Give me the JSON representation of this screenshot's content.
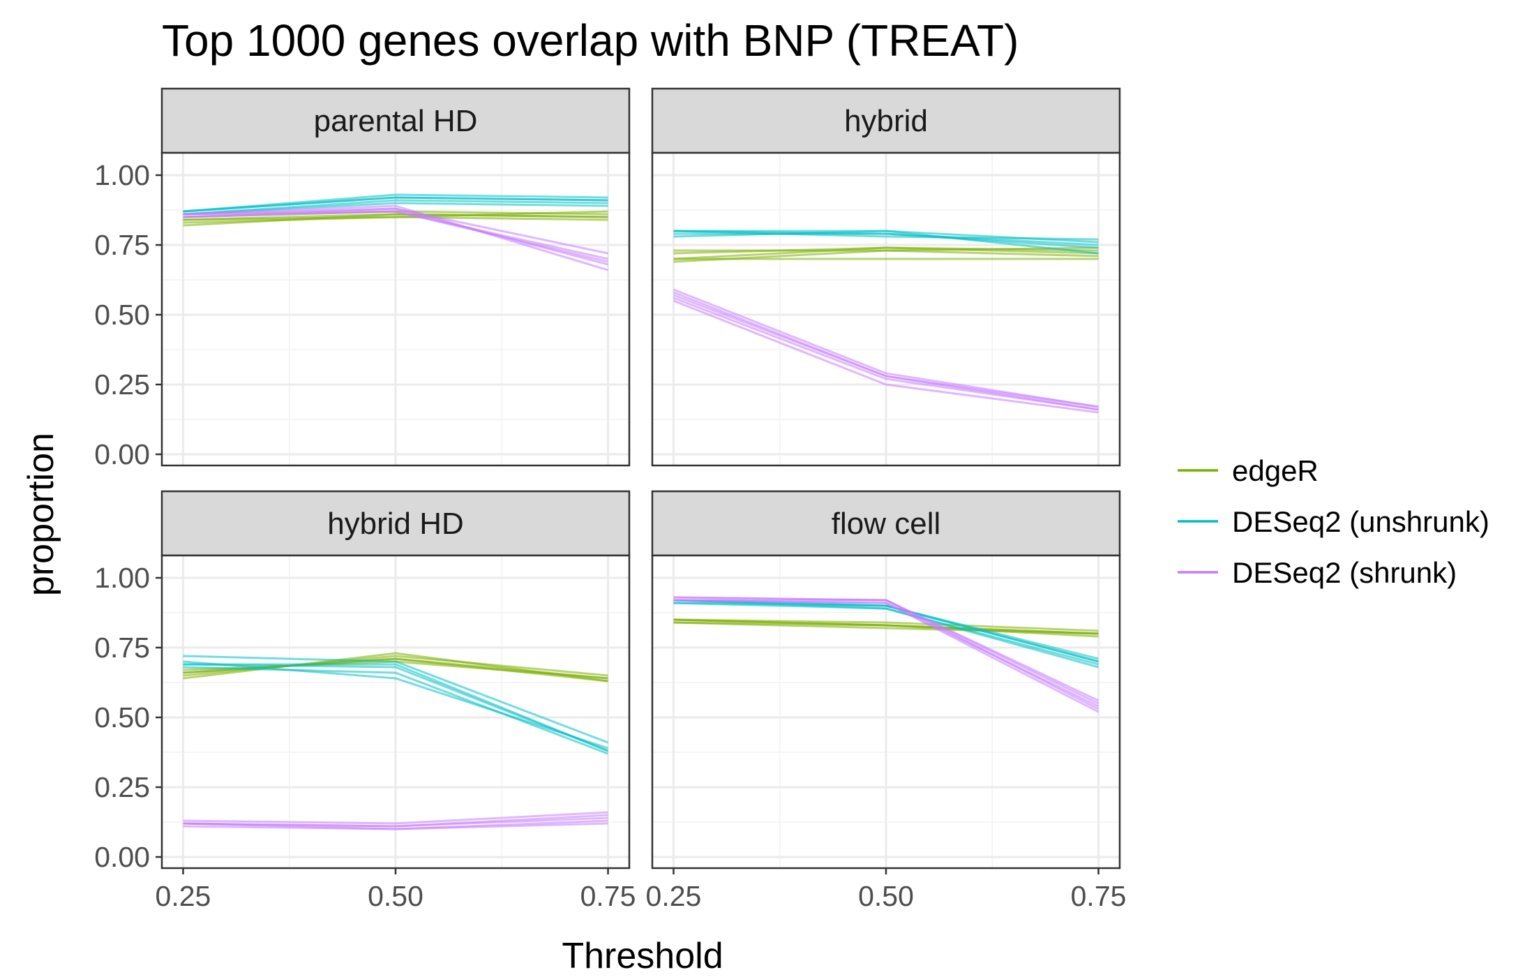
{
  "chart_data": {
    "type": "line",
    "title": "Top 1000 genes overlap with BNP (TREAT)",
    "xlabel": "Threshold",
    "ylabel": "proportion",
    "x": [
      0.25,
      0.5,
      0.75
    ],
    "xlim": [
      0.225,
      0.775
    ],
    "ylim": [
      -0.04,
      1.08
    ],
    "x_ticks": [
      "0.25",
      "0.50",
      "0.75"
    ],
    "y_ticks": [
      "0.00",
      "0.25",
      "0.50",
      "0.75",
      "1.00"
    ],
    "grid": true,
    "legend": {
      "position": "right",
      "entries": [
        "edgeR",
        "DESeq2 (unshrunk)",
        "DESeq2 (shrunk)"
      ]
    },
    "colors": {
      "edgeR": "#7CAE00",
      "DESeq2 (unshrunk)": "#00BFC4",
      "DESeq2 (shrunk)": "#C77CFF"
    },
    "panels": [
      {
        "name": "parental HD",
        "series": [
          {
            "name": "edgeR",
            "lines": [
              [
                0.84,
                0.85,
                0.84
              ],
              [
                0.82,
                0.86,
                0.85
              ],
              [
                0.85,
                0.87,
                0.86
              ],
              [
                0.83,
                0.85,
                0.87
              ],
              [
                0.84,
                0.86,
                0.85
              ]
            ]
          },
          {
            "name": "DESeq2 (unshrunk)",
            "lines": [
              [
                0.87,
                0.92,
                0.91
              ],
              [
                0.86,
                0.91,
                0.9
              ],
              [
                0.87,
                0.93,
                0.92
              ],
              [
                0.86,
                0.9,
                0.89
              ],
              [
                0.87,
                0.92,
                0.91
              ]
            ]
          },
          {
            "name": "DESeq2 (shrunk)",
            "lines": [
              [
                0.86,
                0.88,
                0.68
              ],
              [
                0.85,
                0.87,
                0.7
              ],
              [
                0.86,
                0.89,
                0.66
              ],
              [
                0.85,
                0.88,
                0.72
              ],
              [
                0.86,
                0.87,
                0.69
              ]
            ]
          }
        ]
      },
      {
        "name": "hybrid",
        "series": [
          {
            "name": "edgeR",
            "lines": [
              [
                0.69,
                0.73,
                0.71
              ],
              [
                0.7,
                0.74,
                0.72
              ],
              [
                0.72,
                0.74,
                0.73
              ],
              [
                0.73,
                0.73,
                0.74
              ],
              [
                0.7,
                0.7,
                0.7
              ]
            ]
          },
          {
            "name": "DESeq2 (unshrunk)",
            "lines": [
              [
                0.8,
                0.8,
                0.76
              ],
              [
                0.79,
                0.79,
                0.74
              ],
              [
                0.8,
                0.78,
                0.77
              ],
              [
                0.78,
                0.8,
                0.72
              ],
              [
                0.8,
                0.79,
                0.75
              ]
            ]
          },
          {
            "name": "DESeq2 (shrunk)",
            "lines": [
              [
                0.58,
                0.28,
                0.17
              ],
              [
                0.56,
                0.27,
                0.16
              ],
              [
                0.55,
                0.25,
                0.15
              ],
              [
                0.57,
                0.28,
                0.16
              ],
              [
                0.59,
                0.29,
                0.17
              ]
            ]
          }
        ]
      },
      {
        "name": "hybrid HD",
        "series": [
          {
            "name": "edgeR",
            "lines": [
              [
                0.66,
                0.71,
                0.64
              ],
              [
                0.64,
                0.73,
                0.63
              ],
              [
                0.67,
                0.7,
                0.64
              ],
              [
                0.65,
                0.72,
                0.65
              ],
              [
                0.66,
                0.71,
                0.63
              ]
            ]
          },
          {
            "name": "DESeq2 (unshrunk)",
            "lines": [
              [
                0.69,
                0.69,
                0.38
              ],
              [
                0.68,
                0.66,
                0.37
              ],
              [
                0.72,
                0.7,
                0.41
              ],
              [
                0.7,
                0.64,
                0.39
              ],
              [
                0.69,
                0.68,
                0.38
              ]
            ]
          },
          {
            "name": "DESeq2 (shrunk)",
            "lines": [
              [
                0.12,
                0.11,
                0.14
              ],
              [
                0.12,
                0.1,
                0.13
              ],
              [
                0.13,
                0.12,
                0.16
              ],
              [
                0.11,
                0.1,
                0.12
              ],
              [
                0.12,
                0.11,
                0.15
              ]
            ]
          }
        ]
      },
      {
        "name": "flow cell",
        "series": [
          {
            "name": "edgeR",
            "lines": [
              [
                0.85,
                0.83,
                0.8
              ],
              [
                0.84,
                0.83,
                0.79
              ],
              [
                0.85,
                0.84,
                0.81
              ],
              [
                0.84,
                0.82,
                0.8
              ],
              [
                0.85,
                0.83,
                0.8
              ]
            ]
          },
          {
            "name": "DESeq2 (unshrunk)",
            "lines": [
              [
                0.92,
                0.9,
                0.7
              ],
              [
                0.91,
                0.89,
                0.68
              ],
              [
                0.92,
                0.9,
                0.71
              ],
              [
                0.92,
                0.89,
                0.69
              ],
              [
                0.91,
                0.9,
                0.7
              ]
            ]
          },
          {
            "name": "DESeq2 (shrunk)",
            "lines": [
              [
                0.92,
                0.91,
                0.54
              ],
              [
                0.93,
                0.92,
                0.55
              ],
              [
                0.92,
                0.91,
                0.52
              ],
              [
                0.93,
                0.92,
                0.56
              ],
              [
                0.92,
                0.92,
                0.53
              ]
            ]
          }
        ]
      }
    ]
  }
}
